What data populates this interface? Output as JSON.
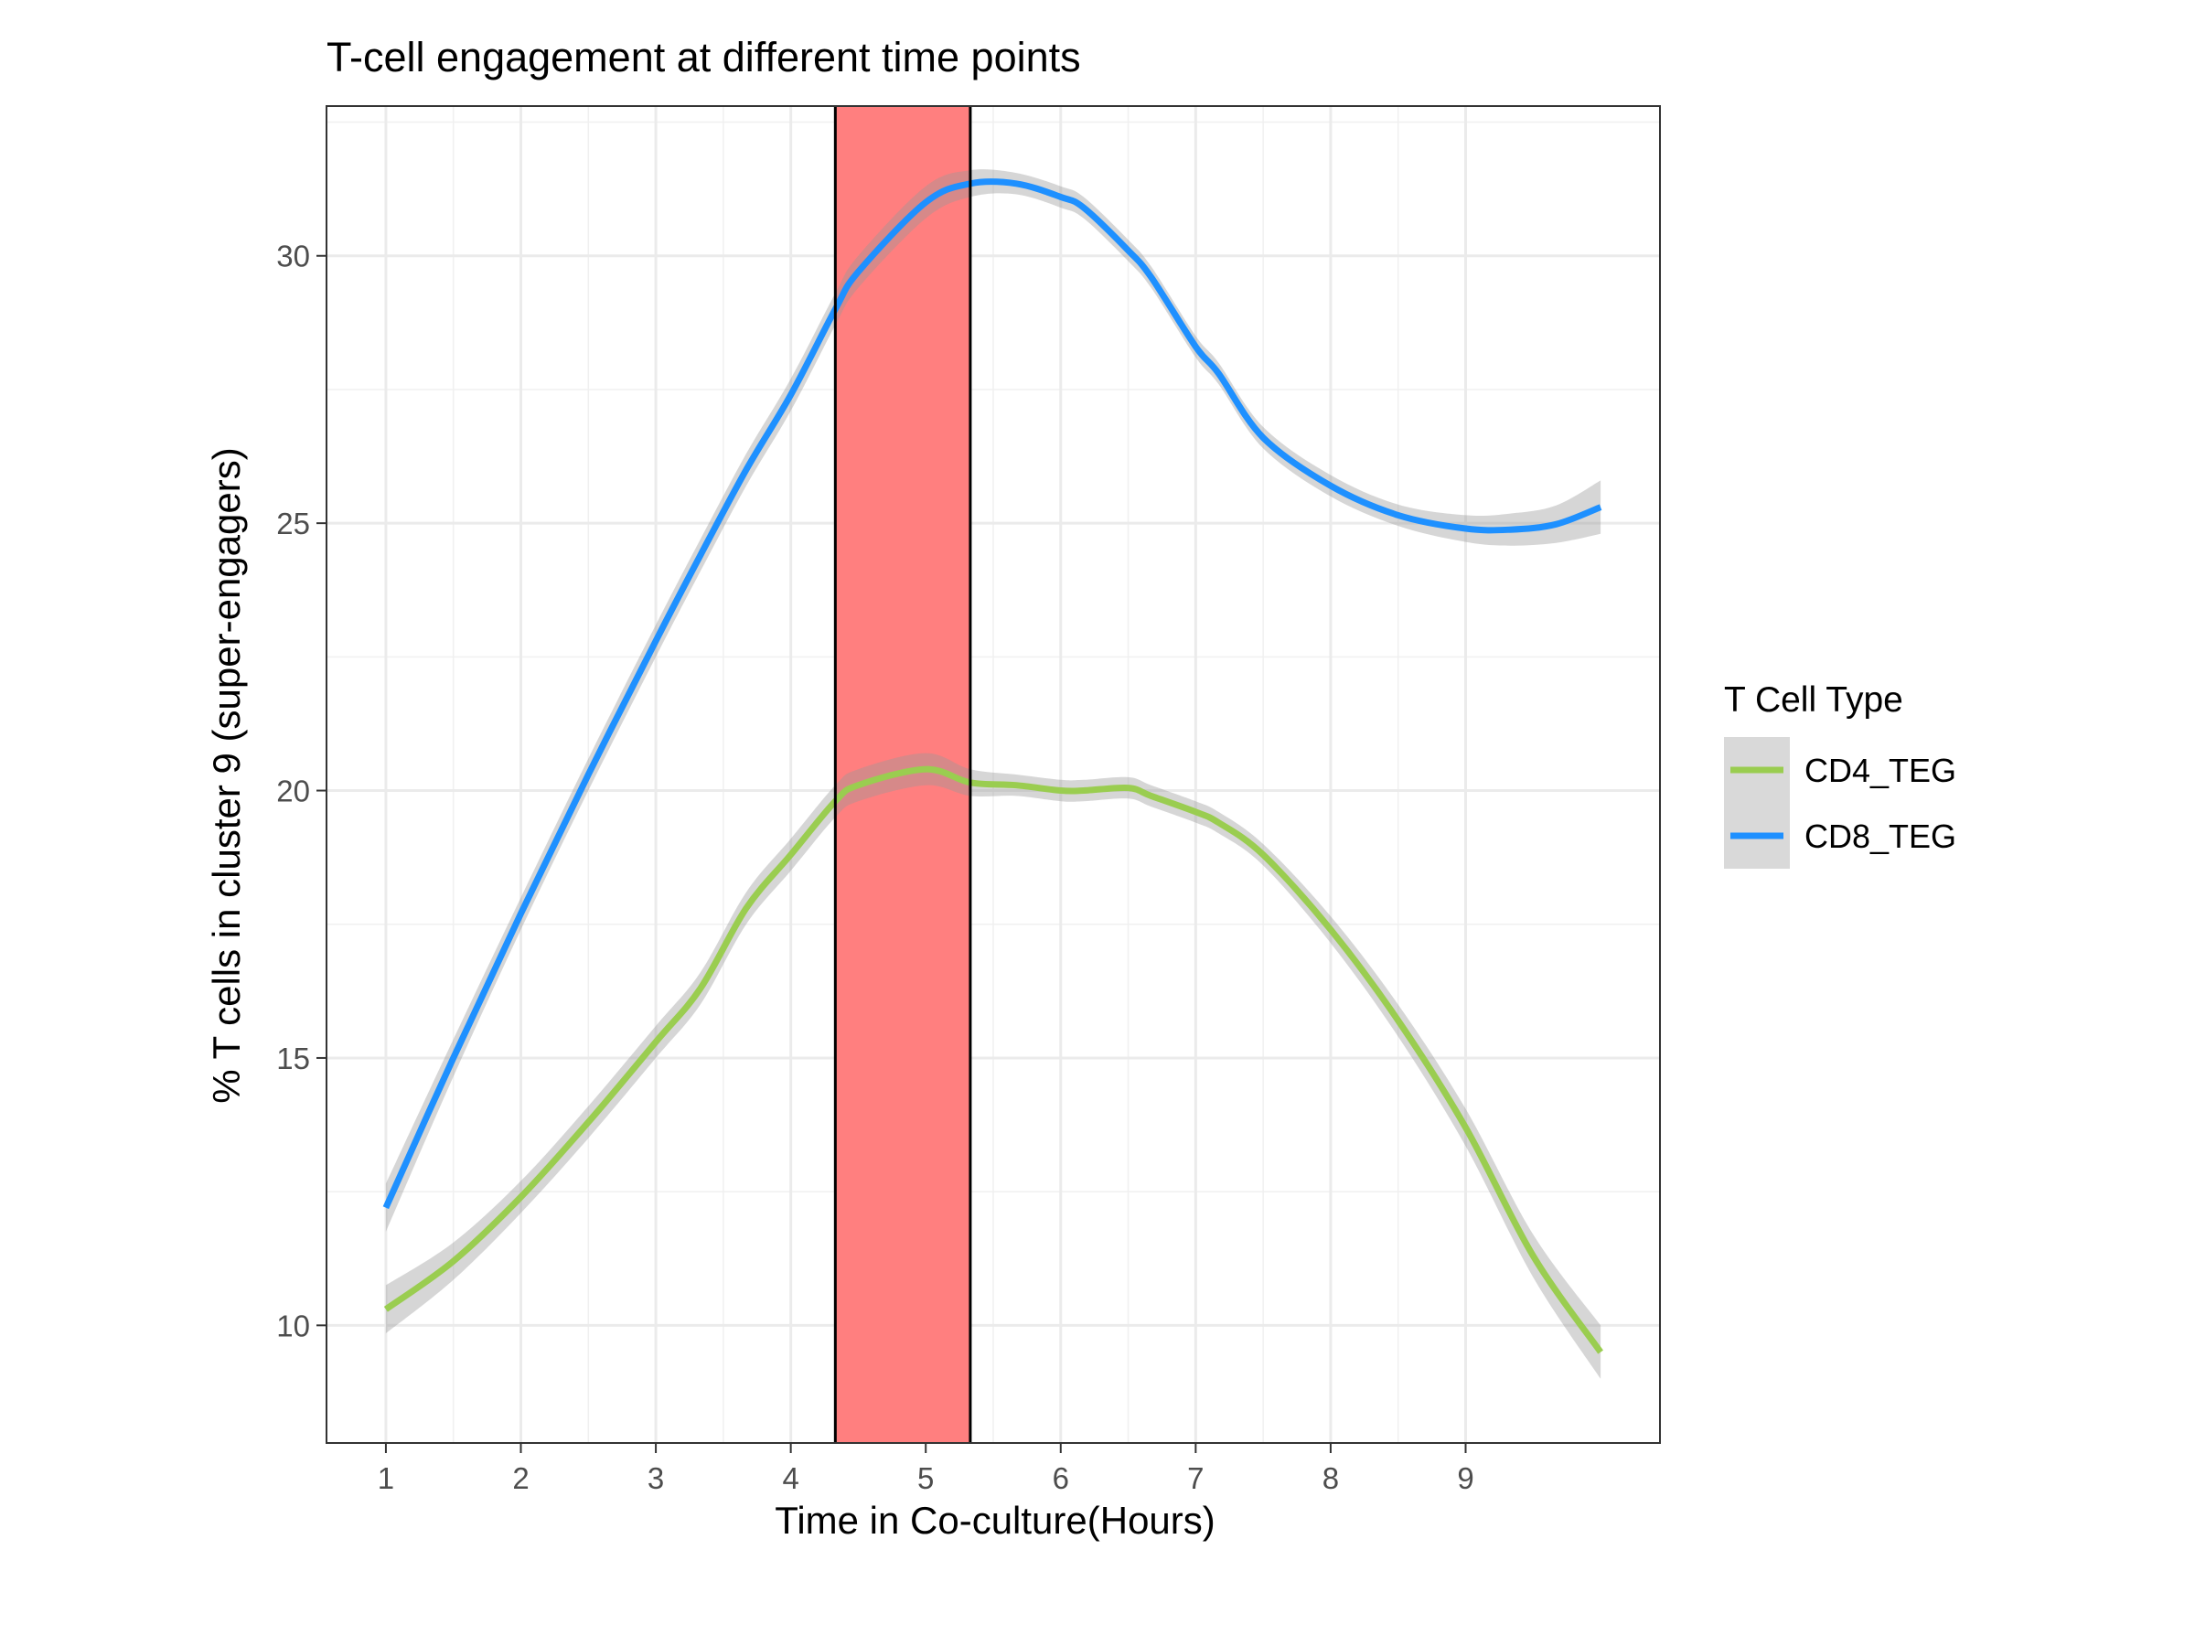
{
  "chart_data": {
    "type": "line",
    "title": "T-cell engagement at different time points",
    "xlabel": "Time in Co-culture(Hours)",
    "ylabel": "% T cells in cluster 9 (super-engagers)",
    "xlim": [
      0.56,
      10.44
    ],
    "ylim": [
      7.8,
      32.8
    ],
    "x_ticks": [
      1,
      2,
      3,
      4,
      5,
      6,
      7,
      8,
      9
    ],
    "x_tick_labels": [
      "1",
      "2",
      "3",
      "4",
      "5",
      "6",
      "7",
      "8",
      "9"
    ],
    "y_ticks": [
      10,
      15,
      20,
      25,
      30
    ],
    "y_tick_labels": [
      "10",
      "15",
      "20",
      "25",
      "30"
    ],
    "grid": true,
    "legend": {
      "title": "T Cell Type",
      "position": "right"
    },
    "highlight_band": {
      "x_start": 4.33,
      "x_end": 5.33,
      "color": "#ff7f7f"
    },
    "series": [
      {
        "name": "CD4_TEG",
        "color": "#9acd50",
        "x": [
          1,
          1.5,
          2,
          2.5,
          3,
          3.33,
          3.67,
          4,
          4.33,
          4.5,
          5,
          5.33,
          5.67,
          6,
          6.17,
          6.5,
          6.67,
          7,
          7.17,
          7.5,
          8,
          8.5,
          9,
          9.5,
          10
        ],
        "y": [
          10.3,
          11.2,
          12.4,
          13.8,
          15.3,
          16.3,
          17.8,
          18.8,
          19.8,
          20.1,
          20.4,
          20.15,
          20.1,
          20.0,
          20.0,
          20.05,
          19.9,
          19.6,
          19.4,
          18.8,
          17.4,
          15.7,
          13.7,
          11.3,
          9.5
        ],
        "ci": [
          0.45,
          0.35,
          0.3,
          0.3,
          0.3,
          0.3,
          0.3,
          0.3,
          0.3,
          0.3,
          0.3,
          0.25,
          0.2,
          0.2,
          0.2,
          0.2,
          0.2,
          0.2,
          0.2,
          0.2,
          0.25,
          0.3,
          0.35,
          0.4,
          0.5
        ]
      },
      {
        "name": "CD8_TEG",
        "color": "#1e90ff",
        "x": [
          1,
          1.5,
          2,
          2.5,
          3,
          3.33,
          3.67,
          4,
          4.33,
          4.5,
          5,
          5.33,
          5.67,
          6,
          6.17,
          6.5,
          6.67,
          7,
          7.17,
          7.5,
          8,
          8.5,
          9,
          9.33,
          9.67,
          10
        ],
        "y": [
          12.2,
          15.0,
          17.7,
          20.3,
          22.8,
          24.4,
          26.0,
          27.4,
          29.0,
          29.7,
          31.0,
          31.35,
          31.35,
          31.1,
          30.9,
          30.1,
          29.6,
          28.3,
          27.8,
          26.6,
          25.7,
          25.15,
          24.9,
          24.88,
          24.98,
          25.3
        ],
        "ci": [
          0.45,
          0.35,
          0.3,
          0.3,
          0.3,
          0.3,
          0.3,
          0.3,
          0.3,
          0.3,
          0.3,
          0.25,
          0.2,
          0.2,
          0.2,
          0.2,
          0.2,
          0.2,
          0.2,
          0.2,
          0.2,
          0.2,
          0.25,
          0.3,
          0.35,
          0.5
        ]
      }
    ]
  }
}
